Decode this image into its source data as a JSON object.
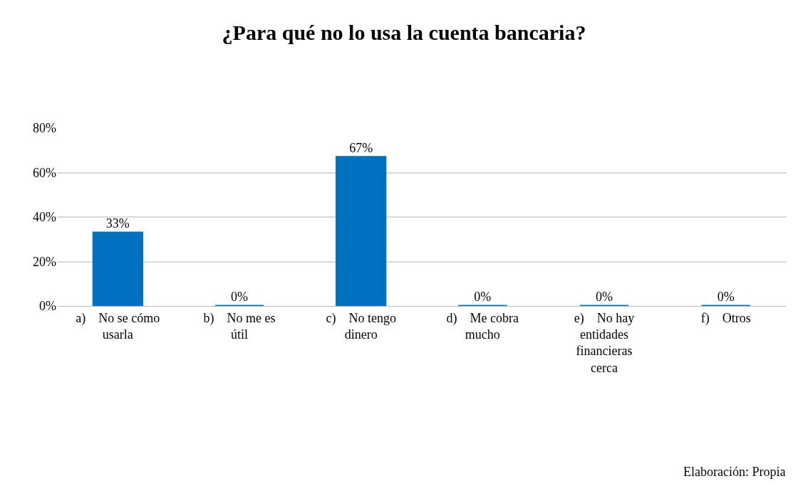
{
  "chart_data": {
    "type": "bar",
    "title": "¿Para qué no lo usa la cuenta bancaria?",
    "categories": [
      "a)    No se cómo usarla",
      "b)    No me es útil",
      "c)    No tengo dinero",
      "d)    Me cobra mucho",
      "e)    No hay entidades financieras cerca",
      "f)    Otros"
    ],
    "values": [
      33,
      0,
      67,
      0,
      0,
      0
    ],
    "value_labels": [
      "33%",
      "0%",
      "67%",
      "0%",
      "0%",
      "0%"
    ],
    "color": "#0070c0",
    "ylim": [
      0,
      80
    ],
    "yticks": [
      {
        "value": 0,
        "label": "0%"
      },
      {
        "value": 20,
        "label": "20%"
      },
      {
        "value": 40,
        "label": "40%"
      },
      {
        "value": 60,
        "label": "60%"
      },
      {
        "value": 80,
        "label": "80%"
      }
    ],
    "grid": "y",
    "annotations": [
      "Elaboración: Propia"
    ]
  }
}
